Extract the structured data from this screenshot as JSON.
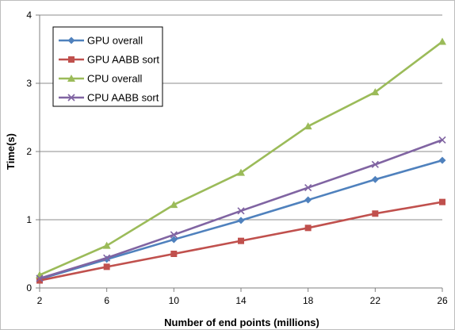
{
  "chart_data": {
    "type": "line",
    "title": "",
    "xlabel": "Number of end points (millions)",
    "ylabel": "Time(s)",
    "xlim": [
      2,
      26
    ],
    "ylim": [
      0,
      4
    ],
    "x": [
      2,
      6,
      10,
      14,
      18,
      22,
      26
    ],
    "x_ticks": [
      "2",
      "6",
      "10",
      "14",
      "18",
      "22",
      "26"
    ],
    "y_ticks": [
      "0",
      "1",
      "2",
      "3",
      "4"
    ],
    "legend_position": "top-left",
    "grid": "horizontal",
    "series": [
      {
        "name": "GPU overall",
        "color": "#4F81BD",
        "marker": "diamond",
        "values": [
          0.13,
          0.42,
          0.71,
          0.99,
          1.29,
          1.59,
          1.87
        ]
      },
      {
        "name": "GPU AABB sort",
        "color": "#C0504D",
        "marker": "square",
        "values": [
          0.11,
          0.31,
          0.5,
          0.69,
          0.88,
          1.09,
          1.26
        ]
      },
      {
        "name": "CPU overall",
        "color": "#9BBB59",
        "marker": "triangle",
        "values": [
          0.19,
          0.62,
          1.22,
          1.69,
          2.37,
          2.87,
          3.61
        ]
      },
      {
        "name": "CPU AABB sort",
        "color": "#8064A2",
        "marker": "x",
        "values": [
          0.14,
          0.44,
          0.78,
          1.13,
          1.47,
          1.81,
          2.17
        ]
      }
    ]
  }
}
